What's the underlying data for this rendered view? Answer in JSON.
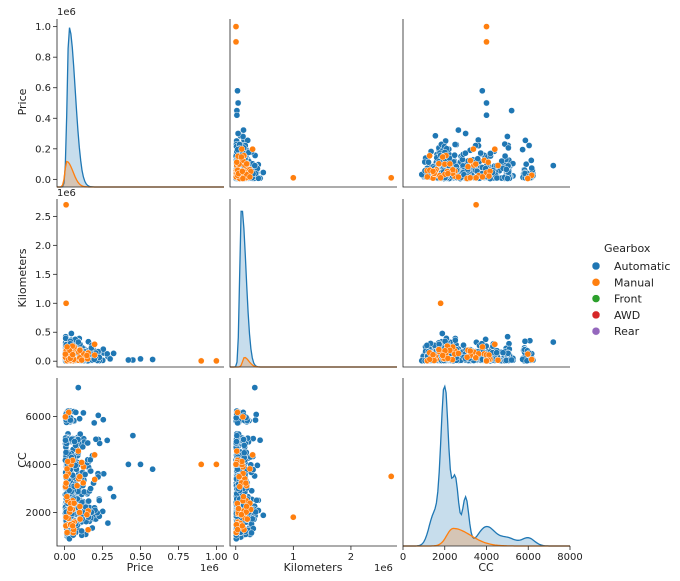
{
  "chart_data": {
    "type": "pairplot",
    "variables": [
      "Price",
      "Kilometers",
      "CC"
    ],
    "hue_title": "Gearbox",
    "hue_levels": [
      {
        "name": "Automatic",
        "color": "#1f77b4"
      },
      {
        "name": "Manual",
        "color": "#ff7f0e"
      },
      {
        "name": "Front",
        "color": "#2ca02c"
      },
      {
        "name": "AWD",
        "color": "#d62728"
      },
      {
        "name": "Rear",
        "color": "#9467bd"
      }
    ],
    "axes": {
      "Price": {
        "label": "Price",
        "range": [
          -50000,
          1050000
        ],
        "ticks": [
          0,
          250000,
          500000,
          750000,
          1000000
        ],
        "tick_labels": [
          "0.0",
          "0.2",
          "0.4",
          "0.6",
          "0.8",
          "1.0"
        ],
        "x_tick_labels": [
          "0.00",
          "0.25",
          "0.50",
          "0.75",
          "1.00"
        ],
        "y_tick_values": [
          0,
          200000,
          400000,
          600000,
          800000,
          1000000
        ],
        "offset": "1e6"
      },
      "Kilometers": {
        "label": "Kilometers",
        "range": [
          -100000,
          2800000
        ],
        "x_ticks": [
          0,
          1000000,
          2000000
        ],
        "x_tick_labels": [
          "0",
          "1",
          "2"
        ],
        "y_ticks": [
          0,
          500000,
          1000000,
          1500000,
          2000000,
          2500000
        ],
        "y_tick_labels": [
          "0.0",
          "0.5",
          "1.0",
          "1.5",
          "2.0",
          "2.5"
        ],
        "offset": "1e6"
      },
      "CC": {
        "label": "CC",
        "x_range": [
          0,
          8000
        ],
        "y_range": [
          600,
          7600
        ],
        "x_ticks": [
          0,
          2000,
          4000,
          6000,
          8000
        ],
        "x_tick_labels": [
          "0",
          "2000",
          "4000",
          "6000",
          "8000"
        ],
        "y_ticks": [
          2000,
          4000,
          6000
        ],
        "y_tick_labels": [
          "2000",
          "4000",
          "6000"
        ]
      }
    },
    "manual_outliers": [
      {
        "Price": 1000000,
        "Kilometers": 5000,
        "CC": 4000
      },
      {
        "Price": 900000,
        "Kilometers": 5000,
        "CC": 4000
      },
      {
        "Price": 10000,
        "Kilometers": 2700000,
        "CC": 3500
      },
      {
        "Price": 10000,
        "Kilometers": 1000000,
        "CC": 1800
      }
    ],
    "automatic_outliers": [
      {
        "Price": 580000,
        "Kilometers": 30000,
        "CC": 3800
      },
      {
        "Price": 500000,
        "Kilometers": 40000,
        "CC": 4000
      },
      {
        "Price": 450000,
        "Kilometers": 20000,
        "CC": 5200
      },
      {
        "Price": 420000,
        "Kilometers": 20000,
        "CC": 4000
      },
      {
        "Price": 90000,
        "Kilometers": 330000,
        "CC": 7200
      },
      {
        "Price": 300000,
        "Kilometers": 40000,
        "CC": 3000
      }
    ],
    "kde": {
      "Price": {
        "Automatic": {
          "peak_at": 30000,
          "peak_density_rel": 1.0
        },
        "Manual": {
          "peak_at": 15000,
          "peak_density_rel": 0.16
        }
      },
      "Kilometers": {
        "Automatic": {
          "peak_at": 100000,
          "peak_density_rel": 1.0
        },
        "Manual": {
          "peak_at": 150000,
          "peak_density_rel": 0.06
        }
      },
      "CC": {
        "Automatic": {
          "peak_at": 2000,
          "peak_density_rel": 1.0
        },
        "Manual": {
          "peak_at": 2400,
          "peak_density_rel": 0.11
        }
      }
    }
  }
}
